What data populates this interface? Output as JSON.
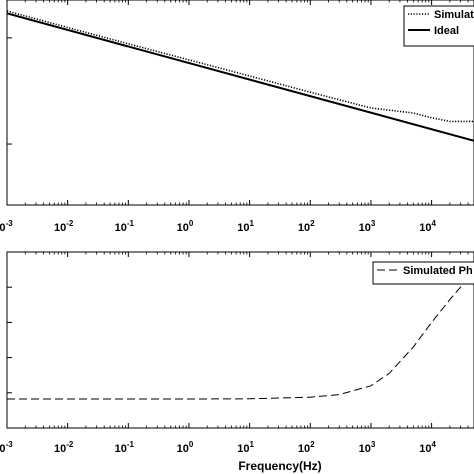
{
  "chart_data": [
    {
      "type": "line",
      "scale": {
        "x": "log",
        "y": "log"
      },
      "xlim": [
        0.001,
        50000
      ],
      "ylim": [
        0.2,
        6
      ],
      "x_ticks": [
        {
          "base": "10",
          "exp": "-3",
          "value": 0.001
        },
        {
          "base": "10",
          "exp": "-2",
          "value": 0.01
        },
        {
          "base": "10",
          "exp": "-1",
          "value": 0.1
        },
        {
          "base": "10",
          "exp": "0",
          "value": 1
        },
        {
          "base": "10",
          "exp": "1",
          "value": 10
        },
        {
          "base": "10",
          "exp": "2",
          "value": 100
        },
        {
          "base": "10",
          "exp": "3",
          "value": 1000
        },
        {
          "base": "10",
          "exp": "4",
          "value": 10000
        }
      ],
      "legend": {
        "position": "top-right"
      },
      "series": [
        {
          "name": "Simulated",
          "style": "dotted",
          "color": "#000000",
          "x": [
            0.001,
            0.01,
            0.1,
            1,
            10,
            100,
            1000,
            5000,
            10000,
            20000,
            50000
          ],
          "y": [
            5.0,
            3.8,
            2.9,
            2.22,
            1.7,
            1.3,
            1.0,
            0.92,
            0.85,
            0.8,
            0.8
          ]
        },
        {
          "name": "Ideal",
          "style": "solid",
          "color": "#000000",
          "x": [
            0.001,
            50000
          ],
          "y": [
            4.8,
            0.58
          ]
        }
      ]
    },
    {
      "type": "line",
      "scale": {
        "x": "log",
        "y": "linear"
      },
      "xlim": [
        0.001,
        50000
      ],
      "ylim": [
        0,
        100
      ],
      "x_ticks": [
        {
          "base": "10",
          "exp": "-3",
          "value": 0.001
        },
        {
          "base": "10",
          "exp": "-2",
          "value": 0.01
        },
        {
          "base": "10",
          "exp": "-1",
          "value": 0.1
        },
        {
          "base": "10",
          "exp": "0",
          "value": 1
        },
        {
          "base": "10",
          "exp": "1",
          "value": 10
        },
        {
          "base": "10",
          "exp": "2",
          "value": 100
        },
        {
          "base": "10",
          "exp": "3",
          "value": 1000
        },
        {
          "base": "10",
          "exp": "4",
          "value": 10000
        }
      ],
      "xlabel": "Frequency(Hz)",
      "legend": {
        "position": "top-right"
      },
      "series": [
        {
          "name": "Simulated Ph",
          "style": "dashed",
          "color": "#000000",
          "x": [
            0.001,
            1,
            10,
            100,
            300,
            1000,
            2000,
            5000,
            10000,
            20000,
            50000
          ],
          "y": [
            16.5,
            16.5,
            16.6,
            17.5,
            19.0,
            24.0,
            31.0,
            46.0,
            60.0,
            73.0,
            89.0
          ]
        }
      ]
    }
  ]
}
